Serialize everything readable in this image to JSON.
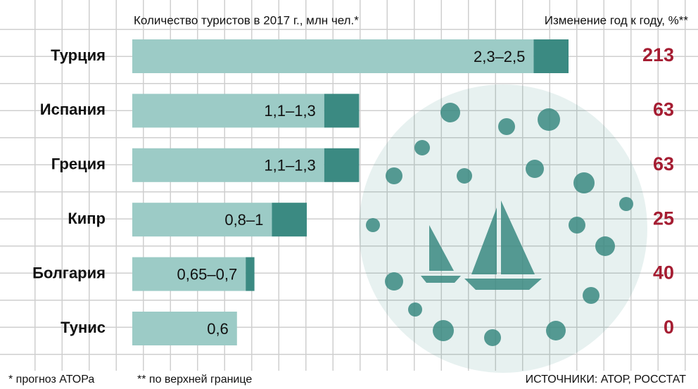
{
  "chart_data": {
    "type": "range-bar",
    "title": "Количество туристов в 2017 г., млн чел.*",
    "change_title": "Изменение год к году, %**",
    "categories": [
      "Турция",
      "Испания",
      "Греция",
      "Кипр",
      "Болгария",
      "Тунис"
    ],
    "low": [
      2.3,
      1.1,
      1.1,
      0.8,
      0.65,
      0.6
    ],
    "high": [
      2.5,
      1.3,
      1.3,
      1,
      0.7,
      0.6
    ],
    "value_labels": [
      "2,3–2,5",
      "1,1–1,3",
      "1,1–1,3",
      "0,8–1",
      "0,65–0,7",
      "0,6"
    ],
    "change": [
      213,
      63,
      63,
      25,
      40,
      0
    ],
    "color_low": "#9ccbc6",
    "color_high": "#3b8a82",
    "change_color": "#a51d32",
    "footnotes": [
      "* прогноз АТОРа",
      "** по верхней границе"
    ],
    "source": "ИСТОЧНИКИ: АТОР, РОССТАТ"
  }
}
